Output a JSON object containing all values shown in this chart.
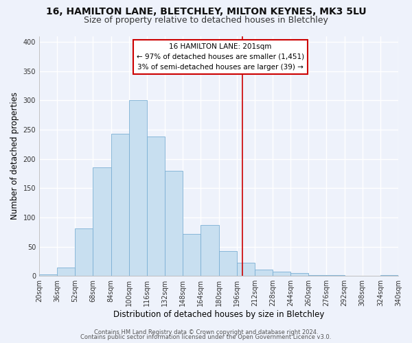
{
  "title": "16, HAMILTON LANE, BLETCHLEY, MILTON KEYNES, MK3 5LU",
  "subtitle": "Size of property relative to detached houses in Bletchley",
  "xlabel": "Distribution of detached houses by size in Bletchley",
  "ylabel": "Number of detached properties",
  "bin_edges": [
    20,
    36,
    52,
    68,
    84,
    100,
    116,
    132,
    148,
    164,
    180,
    196,
    212,
    228,
    244,
    260,
    276,
    292,
    308,
    324,
    340
  ],
  "bar_heights": [
    3,
    14,
    81,
    186,
    243,
    300,
    238,
    180,
    72,
    87,
    42,
    22,
    11,
    7,
    5,
    2,
    1,
    0,
    0,
    2
  ],
  "bar_color": "#c8dff0",
  "bar_edgecolor": "#7bafd4",
  "vline_x": 201,
  "vline_color": "#cc0000",
  "ylim": [
    0,
    410
  ],
  "annotation_title": "16 HAMILTON LANE: 201sqm",
  "annotation_line1": "← 97% of detached houses are smaller (1,451)",
  "annotation_line2": "3% of semi-detached houses are larger (39) →",
  "annotation_box_color": "white",
  "annotation_box_edgecolor": "#cc0000",
  "footer1": "Contains HM Land Registry data © Crown copyright and database right 2024.",
  "footer2": "Contains public sector information licensed under the Open Government Licence v3.0.",
  "background_color": "#eef2fb",
  "grid_color": "white",
  "title_fontsize": 10,
  "subtitle_fontsize": 9,
  "axis_label_fontsize": 8.5,
  "tick_fontsize": 7,
  "footer_fontsize": 6,
  "annotation_fontsize": 7.5
}
